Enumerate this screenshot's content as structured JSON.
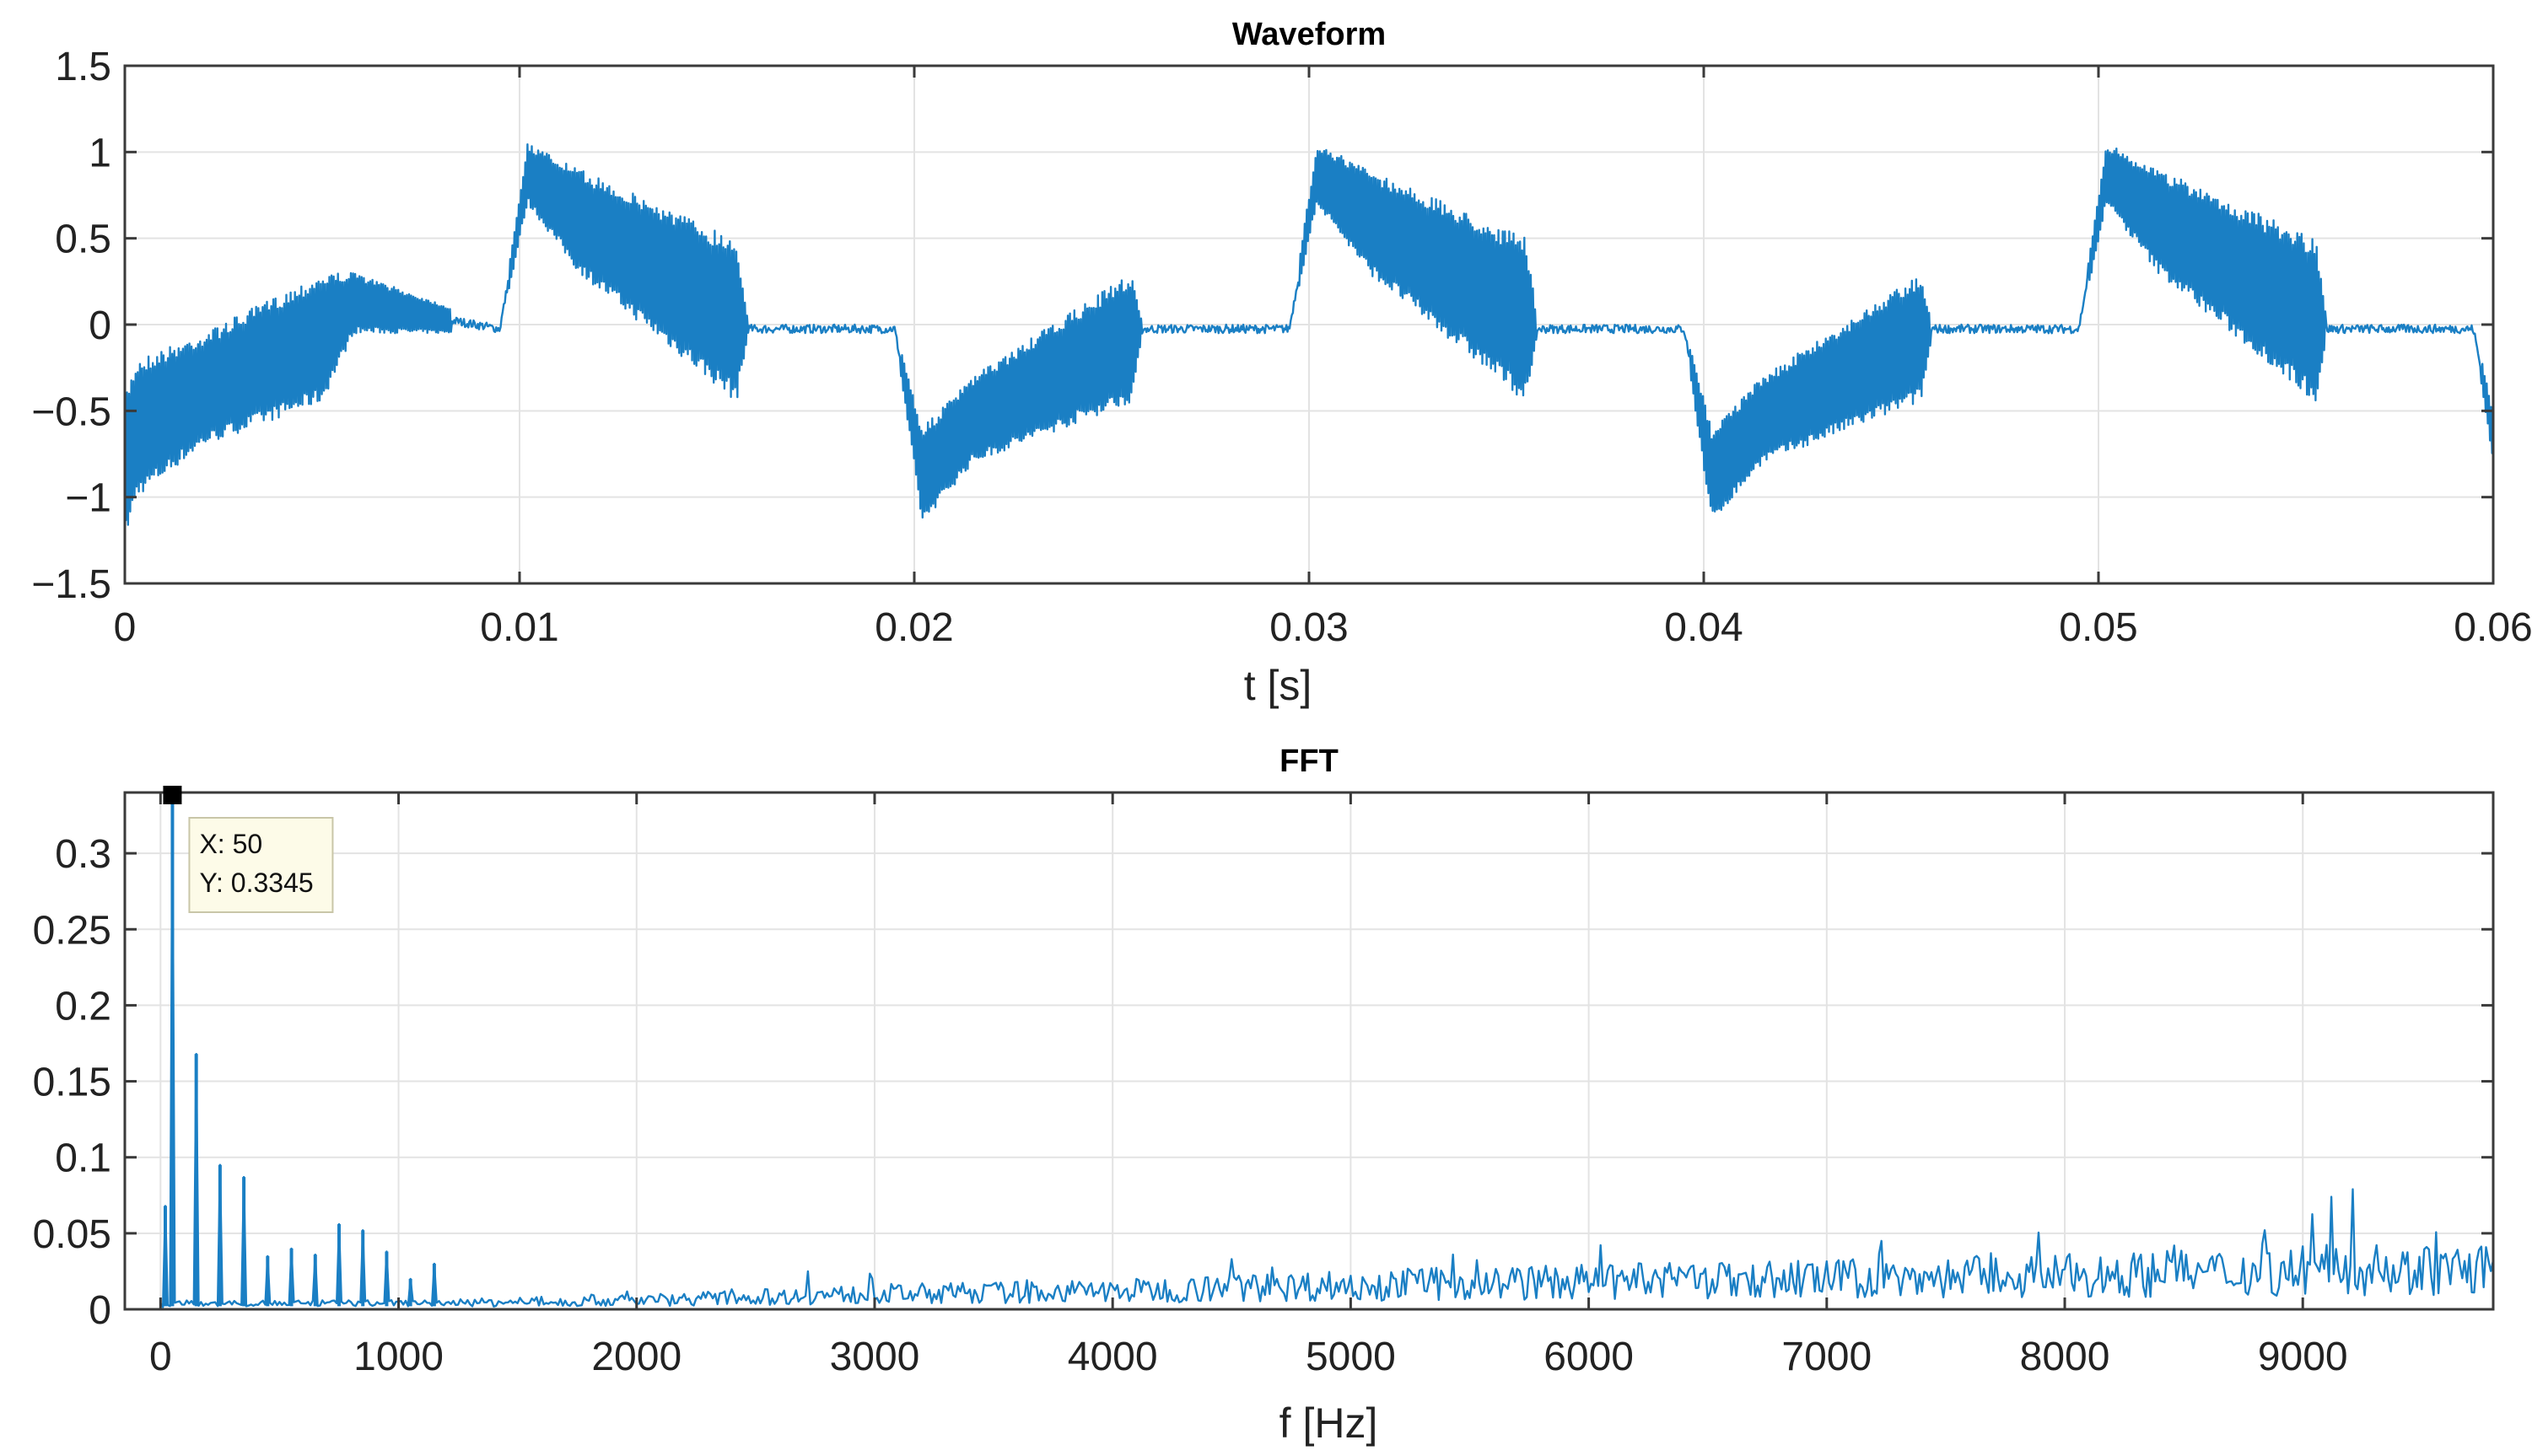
{
  "chart_data": [
    {
      "type": "line",
      "title": "Waveform",
      "xlabel": "t [s]",
      "ylabel": "",
      "xlim": [
        0,
        0.06
      ],
      "ylim": [
        -1.5,
        1.5
      ],
      "xticks": [
        0,
        0.01,
        0.02,
        0.03,
        0.04,
        0.05,
        0.06
      ],
      "xtick_labels": [
        "0",
        "0.01",
        "0.02",
        "0.03",
        "0.04",
        "0.05",
        "0.06"
      ],
      "yticks": [
        1.5,
        1,
        0.5,
        0,
        -0.5,
        -1,
        -1.5
      ],
      "ytick_labels": [
        "1.5",
        "1",
        "0.5",
        "0",
        "−0.5",
        "−1",
        "−1.5"
      ],
      "grid": true,
      "color": "#1a7fc4",
      "series": [
        {
          "name": "waveform",
          "period_s": 0.02,
          "envelope": {
            "t": [
              0,
              0.0003,
              0.002,
              0.005,
              0.0058,
              0.0095,
              0.0102,
              0.0115,
              0.0155,
              0.0158,
              0.0195,
              0.0202,
              0.0215,
              0.0255,
              0.0258,
              0.0295,
              0.0302,
              0.0315,
              0.0355,
              0.0358,
              0.0395,
              0.0402,
              0.0415,
              0.0455,
              0.0458,
              0.0495,
              0.0502,
              0.0515,
              0.0555,
              0.0558,
              0.0595,
              0.06
            ],
            "upper": [
              -0.4,
              -0.2,
              -0.05,
              0.3,
              0.3,
              0.0,
              1.05,
              0.9,
              0.5,
              0.0,
              0.0,
              -0.6,
              -0.3,
              0.3,
              0.0,
              0.0,
              1.05,
              0.9,
              0.5,
              0.0,
              0.0,
              -0.6,
              -0.3,
              0.3,
              0.0,
              0.0,
              1.05,
              0.9,
              0.5,
              0.0,
              0.0,
              -0.5
            ],
            "lower": [
              -1.25,
              -1.0,
              -0.7,
              -0.45,
              -0.05,
              -0.05,
              0.7,
              0.3,
              -0.45,
              -0.05,
              -0.05,
              -1.15,
              -0.8,
              -0.45,
              -0.05,
              -0.05,
              0.7,
              0.3,
              -0.45,
              -0.05,
              -0.05,
              -1.15,
              -0.8,
              -0.45,
              -0.05,
              -0.05,
              0.7,
              0.3,
              -0.45,
              -0.05,
              -0.05,
              -0.8
            ]
          }
        }
      ]
    },
    {
      "type": "line",
      "title": "FFT",
      "xlabel": "f [Hz]",
      "ylabel": "",
      "xlim": [
        -150,
        9800
      ],
      "ylim": [
        0,
        0.34
      ],
      "xticks": [
        0,
        1000,
        2000,
        3000,
        4000,
        5000,
        6000,
        7000,
        8000,
        9000
      ],
      "xtick_labels": [
        "0",
        "1000",
        "2000",
        "3000",
        "4000",
        "5000",
        "6000",
        "7000",
        "8000",
        "9000"
      ],
      "yticks": [
        0.3,
        0.25,
        0.2,
        0.15,
        0.1,
        0.05,
        0
      ],
      "ytick_labels": [
        "0.3",
        "0.25",
        "0.2",
        "0.15",
        "0.1",
        "0.05",
        "0"
      ],
      "grid": true,
      "color": "#1a7fc4",
      "series": [
        {
          "name": "spectrum",
          "peaks": {
            "f": [
              20,
              50,
              150,
              250,
              350,
              450,
              550,
              650,
              750,
              850,
              950,
              1050,
              1150,
              2720,
              4500,
              5430,
              6220,
              6550,
              7230,
              7620,
              8220,
              8460,
              8840,
              9120,
              9210
            ],
            "y": [
              0.068,
              0.3345,
              0.168,
              0.095,
              0.087,
              0.035,
              0.04,
              0.036,
              0.056,
              0.052,
              0.038,
              0.02,
              0.03,
              0.025,
              0.033,
              0.036,
              0.03,
              0.03,
              0.045,
              0.034,
              0.032,
              0.042,
              0.052,
              0.074,
              0.079
            ]
          },
          "floor": {
            "f": [
              0,
              1200,
              2000,
              3000,
              4000,
              5000,
              6000,
              7000,
              8000,
              9000,
              9800
            ],
            "y": [
              0.003,
              0.004,
              0.006,
              0.01,
              0.012,
              0.016,
              0.018,
              0.02,
              0.022,
              0.025,
              0.026
            ]
          }
        }
      ],
      "datatip": {
        "x_text": "X: 50",
        "y_text": "Y: 0.3345",
        "f": 50,
        "y": 0.3345
      }
    }
  ]
}
